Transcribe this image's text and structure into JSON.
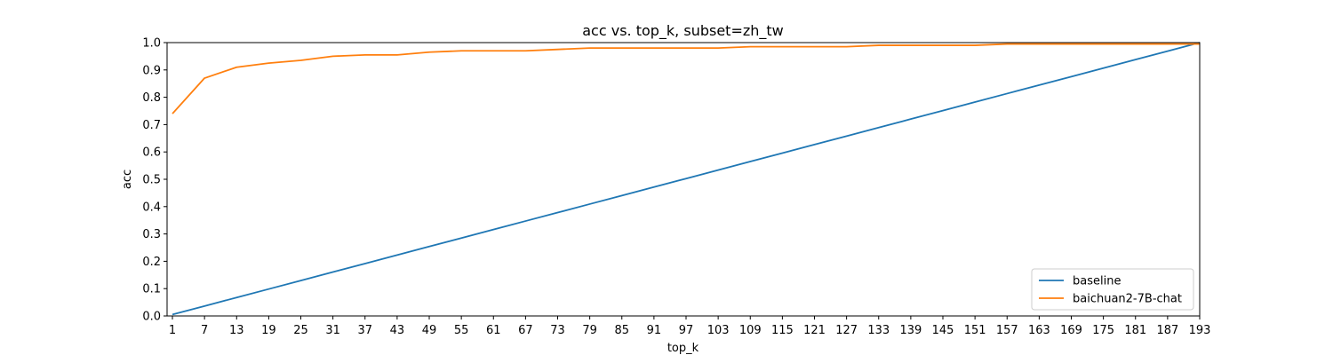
{
  "chart_data": {
    "type": "line",
    "title": "acc vs. top_k, subset=zh_tw",
    "xlabel": "top_k",
    "ylabel": "acc",
    "xlim": [
      0,
      193
    ],
    "ylim": [
      0.0,
      1.0
    ],
    "xticks": [
      1,
      7,
      13,
      19,
      25,
      31,
      37,
      43,
      49,
      55,
      61,
      67,
      73,
      79,
      85,
      91,
      97,
      103,
      109,
      115,
      121,
      127,
      133,
      139,
      145,
      151,
      157,
      163,
      169,
      175,
      181,
      187,
      193
    ],
    "yticks": [
      "0.0",
      "0.1",
      "0.2",
      "0.3",
      "0.4",
      "0.5",
      "0.6",
      "0.7",
      "0.8",
      "0.9",
      "1.0"
    ],
    "grid": false,
    "legend_position": "lower-right",
    "x": [
      1,
      7,
      13,
      19,
      25,
      31,
      37,
      43,
      49,
      55,
      61,
      67,
      73,
      79,
      85,
      91,
      97,
      103,
      109,
      115,
      121,
      127,
      133,
      139,
      145,
      151,
      157,
      163,
      169,
      175,
      181,
      187,
      193
    ],
    "series": [
      {
        "name": "baseline",
        "color": "#1f77b4",
        "values": [
          0.0052,
          0.0363,
          0.0674,
          0.0984,
          0.1295,
          0.1606,
          0.1917,
          0.2228,
          0.2539,
          0.285,
          0.3161,
          0.3472,
          0.3782,
          0.4093,
          0.4404,
          0.4715,
          0.5026,
          0.5337,
          0.5648,
          0.5959,
          0.6269,
          0.658,
          0.6891,
          0.7202,
          0.7513,
          0.7824,
          0.8135,
          0.8446,
          0.8756,
          0.9067,
          0.9378,
          0.9689,
          1.0
        ]
      },
      {
        "name": "baichuan2-7B-chat",
        "color": "#ff7f0e",
        "values": [
          0.74,
          0.87,
          0.91,
          0.925,
          0.935,
          0.95,
          0.955,
          0.955,
          0.965,
          0.97,
          0.97,
          0.97,
          0.975,
          0.98,
          0.98,
          0.98,
          0.98,
          0.98,
          0.985,
          0.985,
          0.985,
          0.985,
          0.99,
          0.99,
          0.99,
          0.99,
          0.995,
          0.995,
          0.995,
          0.995,
          0.995,
          0.995,
          0.995
        ]
      }
    ]
  }
}
